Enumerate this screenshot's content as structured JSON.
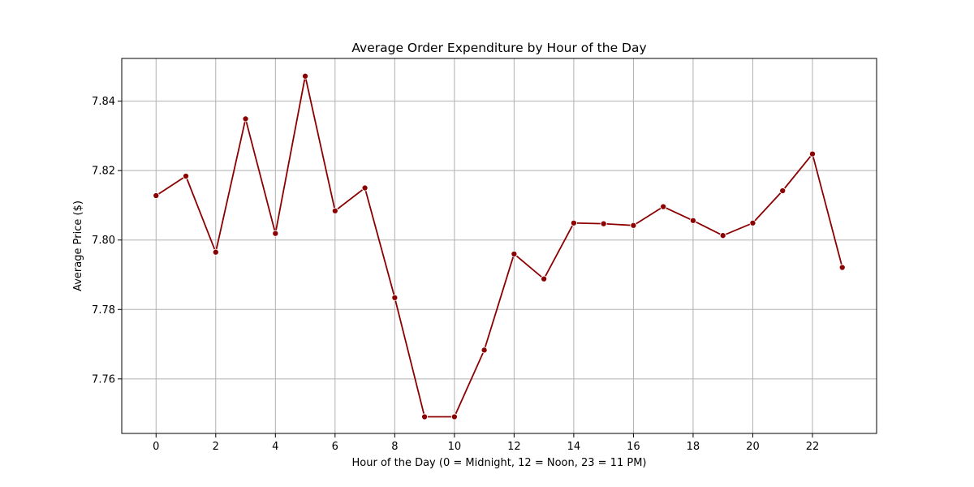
{
  "chart_data": {
    "type": "line",
    "title": "Average Order Expenditure by Hour of the Day",
    "xlabel": "Hour of the Day (0 = Midnight, 12 = Noon, 23 = 11 PM)",
    "ylabel": "Average Price ($)",
    "x": [
      0,
      1,
      2,
      3,
      4,
      5,
      6,
      7,
      8,
      9,
      10,
      11,
      12,
      13,
      14,
      15,
      16,
      17,
      18,
      19,
      20,
      21,
      22,
      23
    ],
    "series": [
      {
        "values": [
          7.8128,
          7.8184,
          7.7965,
          7.8349,
          7.8019,
          7.8472,
          7.8084,
          7.815,
          7.7834,
          7.7491,
          7.7491,
          7.7683,
          7.796,
          7.7888,
          7.8049,
          7.8047,
          7.8042,
          7.8096,
          7.8056,
          7.8013,
          7.8049,
          7.8142,
          7.8248,
          7.7921
        ],
        "color": "#8b0000"
      }
    ],
    "xticks": [
      0,
      2,
      4,
      6,
      8,
      10,
      12,
      14,
      16,
      18,
      20,
      22
    ],
    "yticks": [
      7.76,
      7.78,
      7.8,
      7.82,
      7.84
    ],
    "ytick_labels": [
      "7.76",
      "7.78",
      "7.80",
      "7.82",
      "7.84"
    ],
    "xlim": [
      -1.15,
      24.15
    ],
    "ylim": [
      7.7443,
      7.8523
    ],
    "grid": true,
    "legend": "none"
  }
}
